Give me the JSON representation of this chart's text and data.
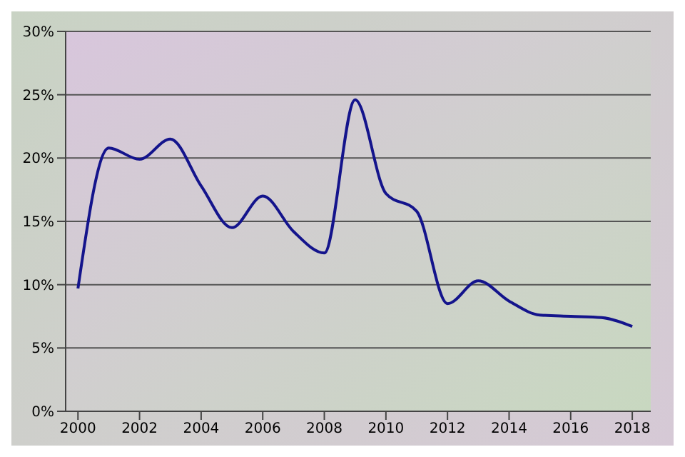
{
  "chart_data": {
    "type": "line",
    "x": [
      2000,
      2001,
      2002,
      2003,
      2004,
      2005,
      2006,
      2007,
      2008,
      2009,
      2010,
      2011,
      2012,
      2013,
      2014,
      2015,
      2016,
      2017,
      2018
    ],
    "series": [
      {
        "color": "#14148c",
        "values": [
          9.7,
          20.8,
          19.9,
          21.5,
          17.8,
          14.5,
          17.0,
          14.2,
          12.5,
          24.6,
          17.2,
          15.8,
          8.5,
          10.3,
          8.7,
          7.6,
          7.5,
          7.4,
          6.7
        ]
      }
    ],
    "xlim": [
      1999.6,
      2018.6
    ],
    "xticks": [
      2000,
      2002,
      2004,
      2006,
      2008,
      2010,
      2012,
      2014,
      2016,
      2018
    ],
    "ylim": [
      0,
      30
    ],
    "yticks": [
      {
        "value": 0,
        "label": "0%"
      },
      {
        "value": 5,
        "label": "5%"
      },
      {
        "value": 10,
        "label": "10%"
      },
      {
        "value": 15,
        "label": "15%"
      },
      {
        "value": 20,
        "label": "20%"
      },
      {
        "value": 25,
        "label": "25%"
      },
      {
        "value": 30,
        "label": "30%"
      }
    ],
    "grid": "y",
    "legend": false,
    "marker": "none",
    "line_style": "solid"
  }
}
